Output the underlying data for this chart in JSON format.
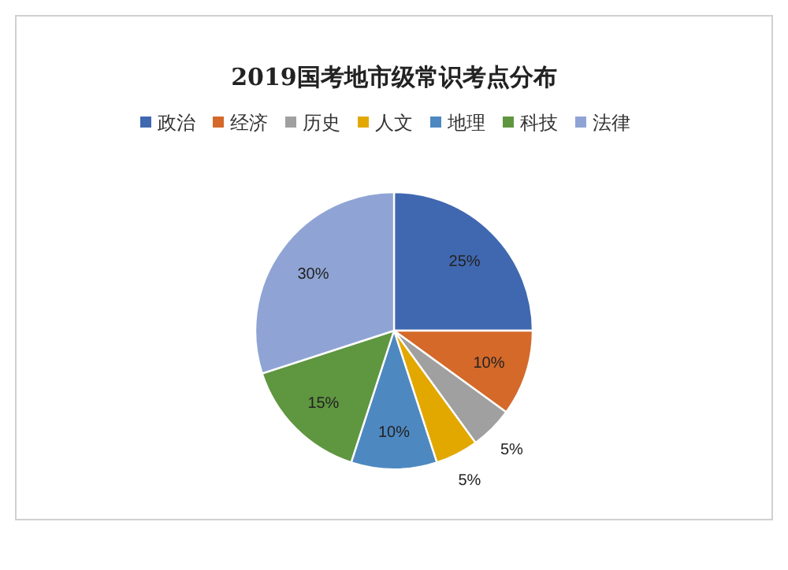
{
  "chart_data": {
    "type": "pie",
    "title": "2019国考地市级常识考点分布",
    "categories": [
      "政治",
      "经济",
      "历史",
      "人文",
      "地理",
      "科技",
      "法律"
    ],
    "values": [
      25,
      10,
      5,
      5,
      10,
      15,
      30
    ],
    "value_labels": [
      "25%",
      "10%",
      "5%",
      "5%",
      "10%",
      "15%",
      "30%"
    ],
    "colors": [
      "#4068b0",
      "#d4692a",
      "#a0a0a0",
      "#e3a800",
      "#4e88c0",
      "#5f9640",
      "#8fa4d4"
    ],
    "legend": "top"
  }
}
